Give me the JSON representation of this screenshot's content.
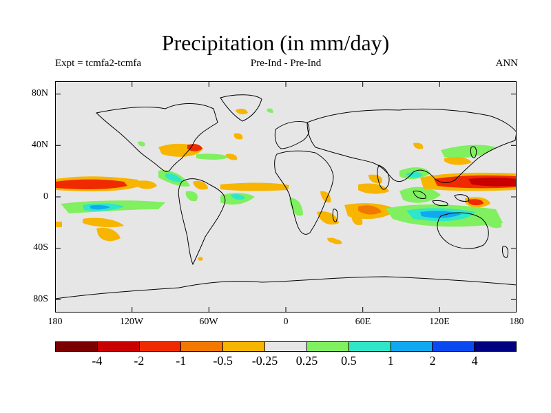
{
  "title": "Precipitation (in mm/day)",
  "subtitle_left": "Expt = tcmfa2-tcmfa",
  "subtitle_center": "Pre-Ind - Pre-Ind",
  "subtitle_right": "ANN",
  "y_ticks": [
    "80N",
    "40N",
    "0",
    "40S",
    "80S"
  ],
  "x_ticks": [
    "180",
    "120W",
    "60W",
    "0",
    "60E",
    "120E",
    "180"
  ],
  "colorbar": {
    "colors": [
      "#7a0000",
      "#c80000",
      "#f02a00",
      "#f27800",
      "#f7b500",
      "#e6e6e6",
      "#80f060",
      "#30e6c8",
      "#10a8f0",
      "#0a48f0",
      "#000080"
    ],
    "labels": [
      "-4",
      "-2",
      "-1",
      "-0.5",
      "-0.25",
      "0.25",
      "0.5",
      "1",
      "2",
      "4"
    ]
  },
  "colors": {
    "background_field": "#e6e6e6",
    "coastline": "#000000"
  }
}
